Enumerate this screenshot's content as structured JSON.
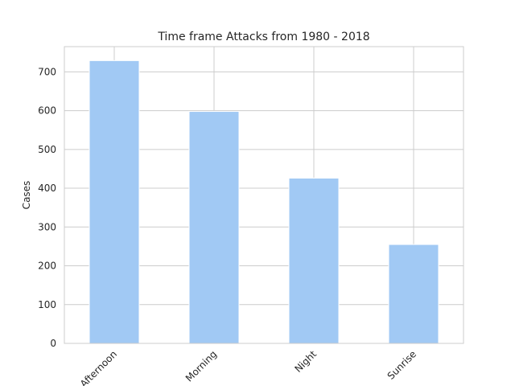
{
  "chart_data": {
    "type": "bar",
    "title": "Time frame Attacks from 1980 - 2018",
    "xlabel": "",
    "ylabel": "Cases",
    "categories": [
      "Afternoon",
      "Morning",
      "Night",
      "Sunrise"
    ],
    "values": [
      729,
      598,
      426,
      255
    ],
    "ylim": [
      0,
      765
    ],
    "yticks": [
      0,
      100,
      200,
      300,
      400,
      500,
      600,
      700
    ],
    "grid": true,
    "bar_color": "#a1c9f4",
    "grid_color": "#cccccc"
  }
}
